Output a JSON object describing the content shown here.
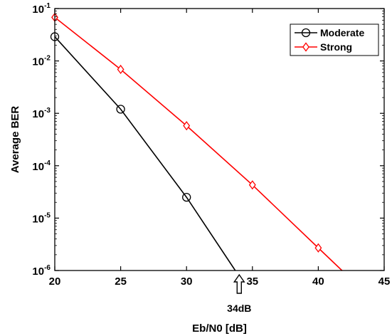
{
  "chart_data": {
    "type": "line",
    "title": "",
    "xlabel": "Eb/N0 [dB]",
    "ylabel": "Average BER",
    "xlim": [
      20,
      45
    ],
    "ylim": [
      1e-06,
      0.1
    ],
    "yscale": "log",
    "x_ticks": [
      {
        "value": 20,
        "label": "20"
      },
      {
        "value": 25,
        "label": "25"
      },
      {
        "value": 30,
        "label": "30"
      },
      {
        "value": 35,
        "label": "35"
      },
      {
        "value": 40,
        "label": "40"
      },
      {
        "value": 45,
        "label": "45"
      }
    ],
    "y_ticks": [
      {
        "value": 1e-06,
        "base": "10",
        "exp": "-6"
      },
      {
        "value": 1e-05,
        "base": "10",
        "exp": "-5"
      },
      {
        "value": 0.0001,
        "base": "10",
        "exp": "-4"
      },
      {
        "value": 0.001,
        "base": "10",
        "exp": "-3"
      },
      {
        "value": 0.01,
        "base": "10",
        "exp": "-2"
      },
      {
        "value": 0.1,
        "base": "10",
        "exp": "-1"
      }
    ],
    "grid": false,
    "legend_position": "top-right",
    "series": [
      {
        "name": "Moderate",
        "color": "#000000",
        "marker": "circle",
        "x": [
          20,
          25,
          30,
          33.7
        ],
        "y": [
          0.029,
          0.0012,
          2.5e-05,
          1e-06
        ],
        "marker_x": [
          20,
          25,
          30
        ]
      },
      {
        "name": "Strong",
        "color": "#ff0000",
        "marker": "diamond",
        "x": [
          20,
          25,
          30,
          35,
          40,
          41.8
        ],
        "y": [
          0.068,
          0.0069,
          0.00058,
          4.3e-05,
          2.7e-06,
          1e-06
        ],
        "marker_x": [
          20,
          25,
          30,
          35,
          40
        ]
      }
    ],
    "annotation": {
      "x": 34,
      "label": "34dB"
    }
  }
}
